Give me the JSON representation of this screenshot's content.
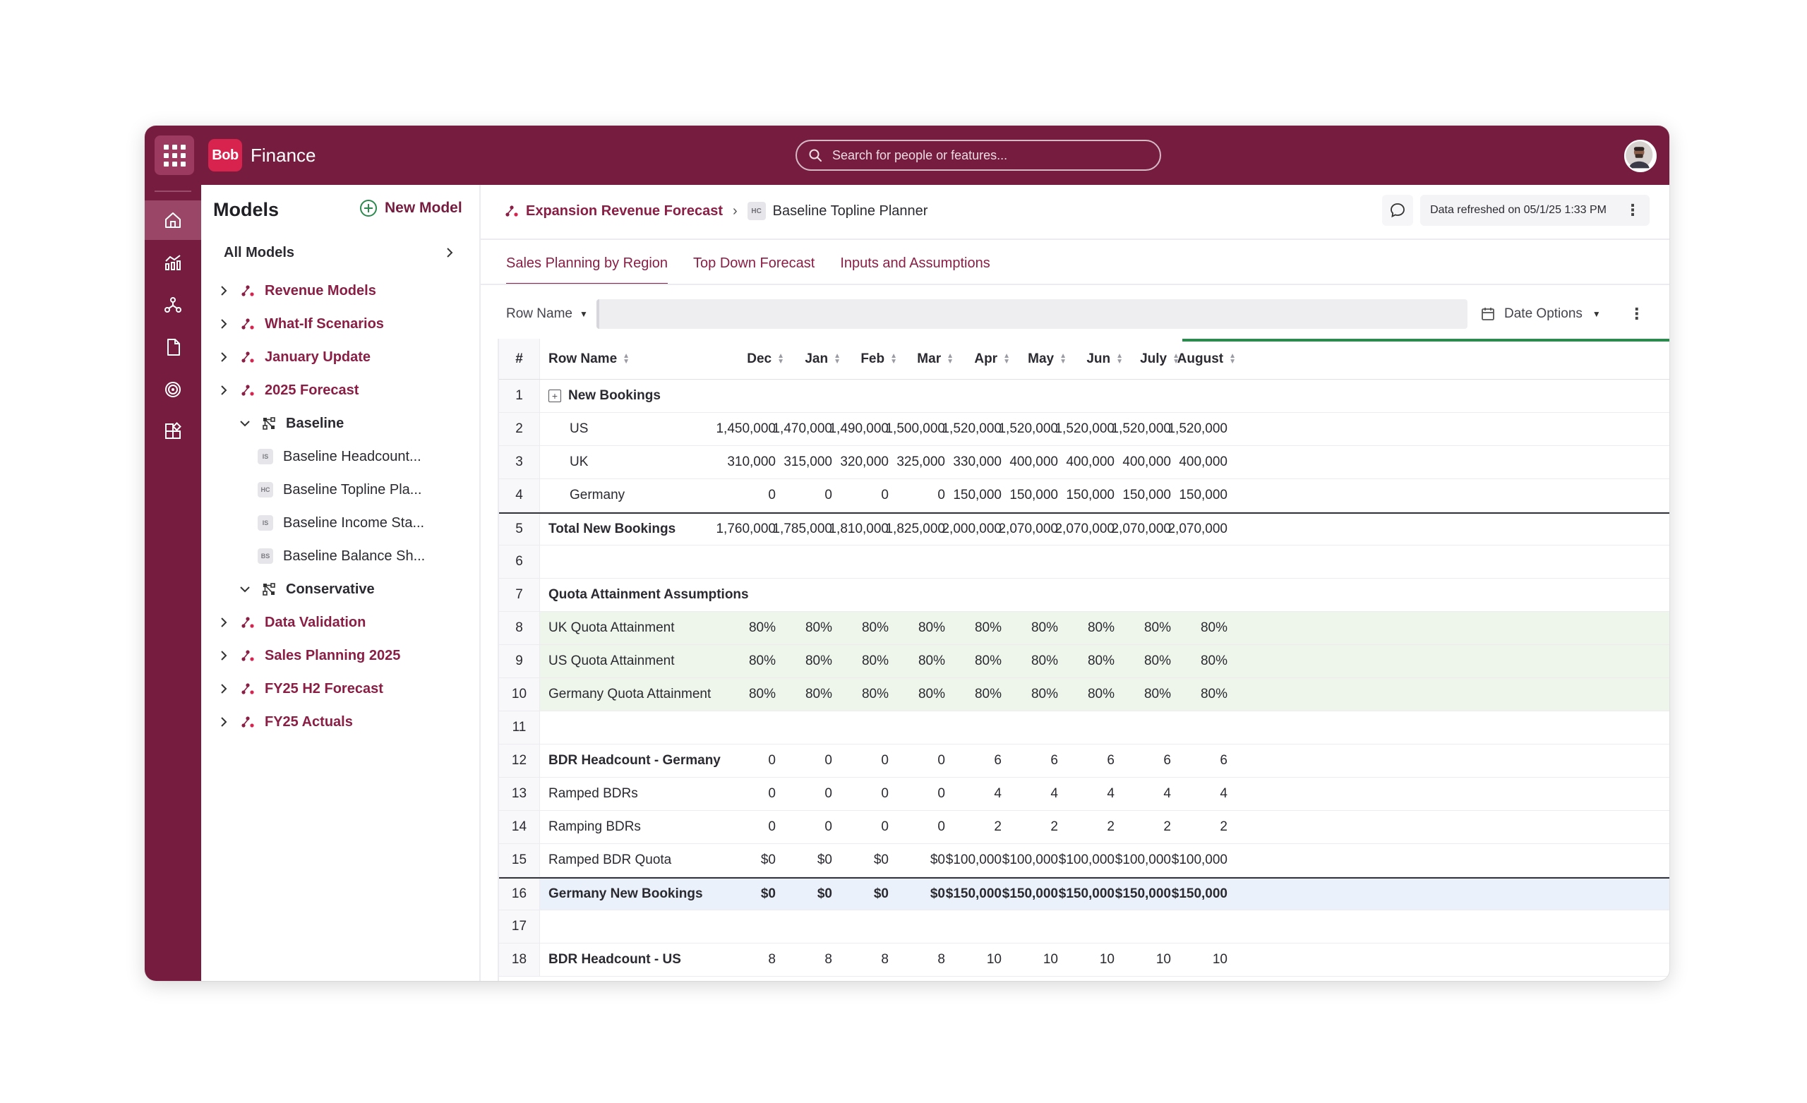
{
  "app": {
    "logo_text": "Bob",
    "name": "Finance"
  },
  "search": {
    "placeholder": "Search for people or features..."
  },
  "sidebar": {
    "title": "Models",
    "new_model_label": "New Model",
    "all_models_label": "All Models",
    "tree": [
      {
        "label": "Revenue Models",
        "type": "model",
        "level": 0
      },
      {
        "label": "What-If Scenarios",
        "type": "model",
        "level": 0
      },
      {
        "label": "January Update",
        "type": "model",
        "level": 0
      },
      {
        "label": "2025 Forecast",
        "type": "model",
        "level": 0
      },
      {
        "label": "Baseline",
        "type": "scenario",
        "level": 1
      },
      {
        "label": "Baseline Headcount...",
        "type": "doc",
        "badge": "IS",
        "level": 2
      },
      {
        "label": "Baseline Topline Pla...",
        "type": "doc",
        "badge": "HC",
        "level": 2
      },
      {
        "label": "Baseline Income Sta...",
        "type": "doc",
        "badge": "IS",
        "level": 2
      },
      {
        "label": "Baseline Balance Sh...",
        "type": "doc",
        "badge": "BS",
        "level": 2
      },
      {
        "label": "Conservative",
        "type": "scenario",
        "level": 1
      },
      {
        "label": "Data Validation",
        "type": "model",
        "level": 0
      },
      {
        "label": "Sales Planning 2025",
        "type": "model",
        "level": 0
      },
      {
        "label": "FY25 H2 Forecast",
        "type": "model",
        "level": 0
      },
      {
        "label": "FY25 Actuals",
        "type": "model",
        "level": 0
      }
    ]
  },
  "breadcrumb": {
    "parent": "Expansion Revenue Forecast",
    "current_badge": "HC",
    "current": "Baseline Topline Planner"
  },
  "status": {
    "refreshed": "Data refreshed on 05/1/25 1:33 PM"
  },
  "tabs": [
    {
      "label": "Sales Planning by Region",
      "active": true
    },
    {
      "label": "Top Down Forecast",
      "active": false
    },
    {
      "label": "Inputs and Assumptions",
      "active": false
    }
  ],
  "toolbar": {
    "row_name_label": "Row Name",
    "date_options_label": "Date Options"
  },
  "grid": {
    "headers": {
      "num": "#",
      "name": "Row Name",
      "months": [
        "Dec",
        "Jan",
        "Feb",
        "Mar",
        "Apr",
        "May",
        "Jun",
        "July",
        "August"
      ]
    },
    "rows": [
      {
        "num": "1",
        "name": "New Bookings",
        "style": "group",
        "values": [
          "",
          "",
          "",
          "",
          "",
          "",
          "",
          "",
          ""
        ]
      },
      {
        "num": "2",
        "name": "US",
        "style": "indent",
        "values": [
          "1,450,000",
          "1,470,000",
          "1,490,000",
          "1,500,000",
          "1,520,000",
          "1,520,000",
          "1,520,000",
          "1,520,000",
          "1,520,000"
        ]
      },
      {
        "num": "3",
        "name": "UK",
        "style": "indent",
        "values": [
          "310,000",
          "315,000",
          "320,000",
          "325,000",
          "330,000",
          "400,000",
          "400,000",
          "400,000",
          "400,000"
        ]
      },
      {
        "num": "4",
        "name": "Germany",
        "style": "indent",
        "values": [
          "0",
          "0",
          "0",
          "0",
          "150,000",
          "150,000",
          "150,000",
          "150,000",
          "150,000"
        ]
      },
      {
        "num": "5",
        "name": "Total New Bookings",
        "style": "total",
        "values": [
          "1,760,000",
          "1,785,000",
          "1,810,000",
          "1,825,000",
          "2,000,000",
          "2,070,000",
          "2,070,000",
          "2,070,000",
          "2,070,000"
        ]
      },
      {
        "num": "6",
        "name": "",
        "style": "plain",
        "values": [
          "",
          "",
          "",
          "",
          "",
          "",
          "",
          "",
          ""
        ]
      },
      {
        "num": "7",
        "name": "Quota Attainment Assumptions",
        "style": "bold",
        "values": [
          "",
          "",
          "",
          "",
          "",
          "",
          "",
          "",
          ""
        ]
      },
      {
        "num": "8",
        "name": "UK Quota Attainment",
        "style": "green",
        "values": [
          "80%",
          "80%",
          "80%",
          "80%",
          "80%",
          "80%",
          "80%",
          "80%",
          "80%"
        ]
      },
      {
        "num": "9",
        "name": "US Quota Attainment",
        "style": "green",
        "values": [
          "80%",
          "80%",
          "80%",
          "80%",
          "80%",
          "80%",
          "80%",
          "80%",
          "80%"
        ]
      },
      {
        "num": "10",
        "name": "Germany Quota Attainment",
        "style": "green",
        "values": [
          "80%",
          "80%",
          "80%",
          "80%",
          "80%",
          "80%",
          "80%",
          "80%",
          "80%"
        ]
      },
      {
        "num": "11",
        "name": "",
        "style": "plain",
        "values": [
          "",
          "",
          "",
          "",
          "",
          "",
          "",
          "",
          ""
        ]
      },
      {
        "num": "12",
        "name": "BDR Headcount  - Germany",
        "style": "bold",
        "values": [
          "0",
          "0",
          "0",
          "0",
          "6",
          "6",
          "6",
          "6",
          "6"
        ]
      },
      {
        "num": "13",
        "name": "Ramped BDRs",
        "style": "plain",
        "values": [
          "0",
          "0",
          "0",
          "0",
          "4",
          "4",
          "4",
          "4",
          "4"
        ]
      },
      {
        "num": "14",
        "name": "Ramping BDRs",
        "style": "plain",
        "values": [
          "0",
          "0",
          "0",
          "0",
          "2",
          "2",
          "2",
          "2",
          "2"
        ]
      },
      {
        "num": "15",
        "name": "Ramped BDR Quota",
        "style": "plain",
        "values": [
          "$0",
          "$0",
          "$0",
          "$0",
          "$100,000",
          "$100,000",
          "$100,000",
          "$100,000",
          "$100,000"
        ]
      },
      {
        "num": "16",
        "name": "Germany New Bookings",
        "style": "blue",
        "values": [
          "$0",
          "$0",
          "$0",
          "$0",
          "$150,000",
          "$150,000",
          "$150,000",
          "$150,000",
          "$150,000"
        ]
      },
      {
        "num": "17",
        "name": "",
        "style": "plain",
        "values": [
          "",
          "",
          "",
          "",
          "",
          "",
          "",
          "",
          ""
        ]
      },
      {
        "num": "18",
        "name": "BDR Headcount  - US",
        "style": "bold",
        "values": [
          "8",
          "8",
          "8",
          "8",
          "10",
          "10",
          "10",
          "10",
          "10"
        ]
      }
    ]
  },
  "colors": {
    "brand": "#761d3f",
    "accent": "#8a1e45",
    "actuals_bar": "#2d8a4e",
    "assumption_row": "#eef6ec",
    "highlight_row": "#eaf1fb"
  }
}
